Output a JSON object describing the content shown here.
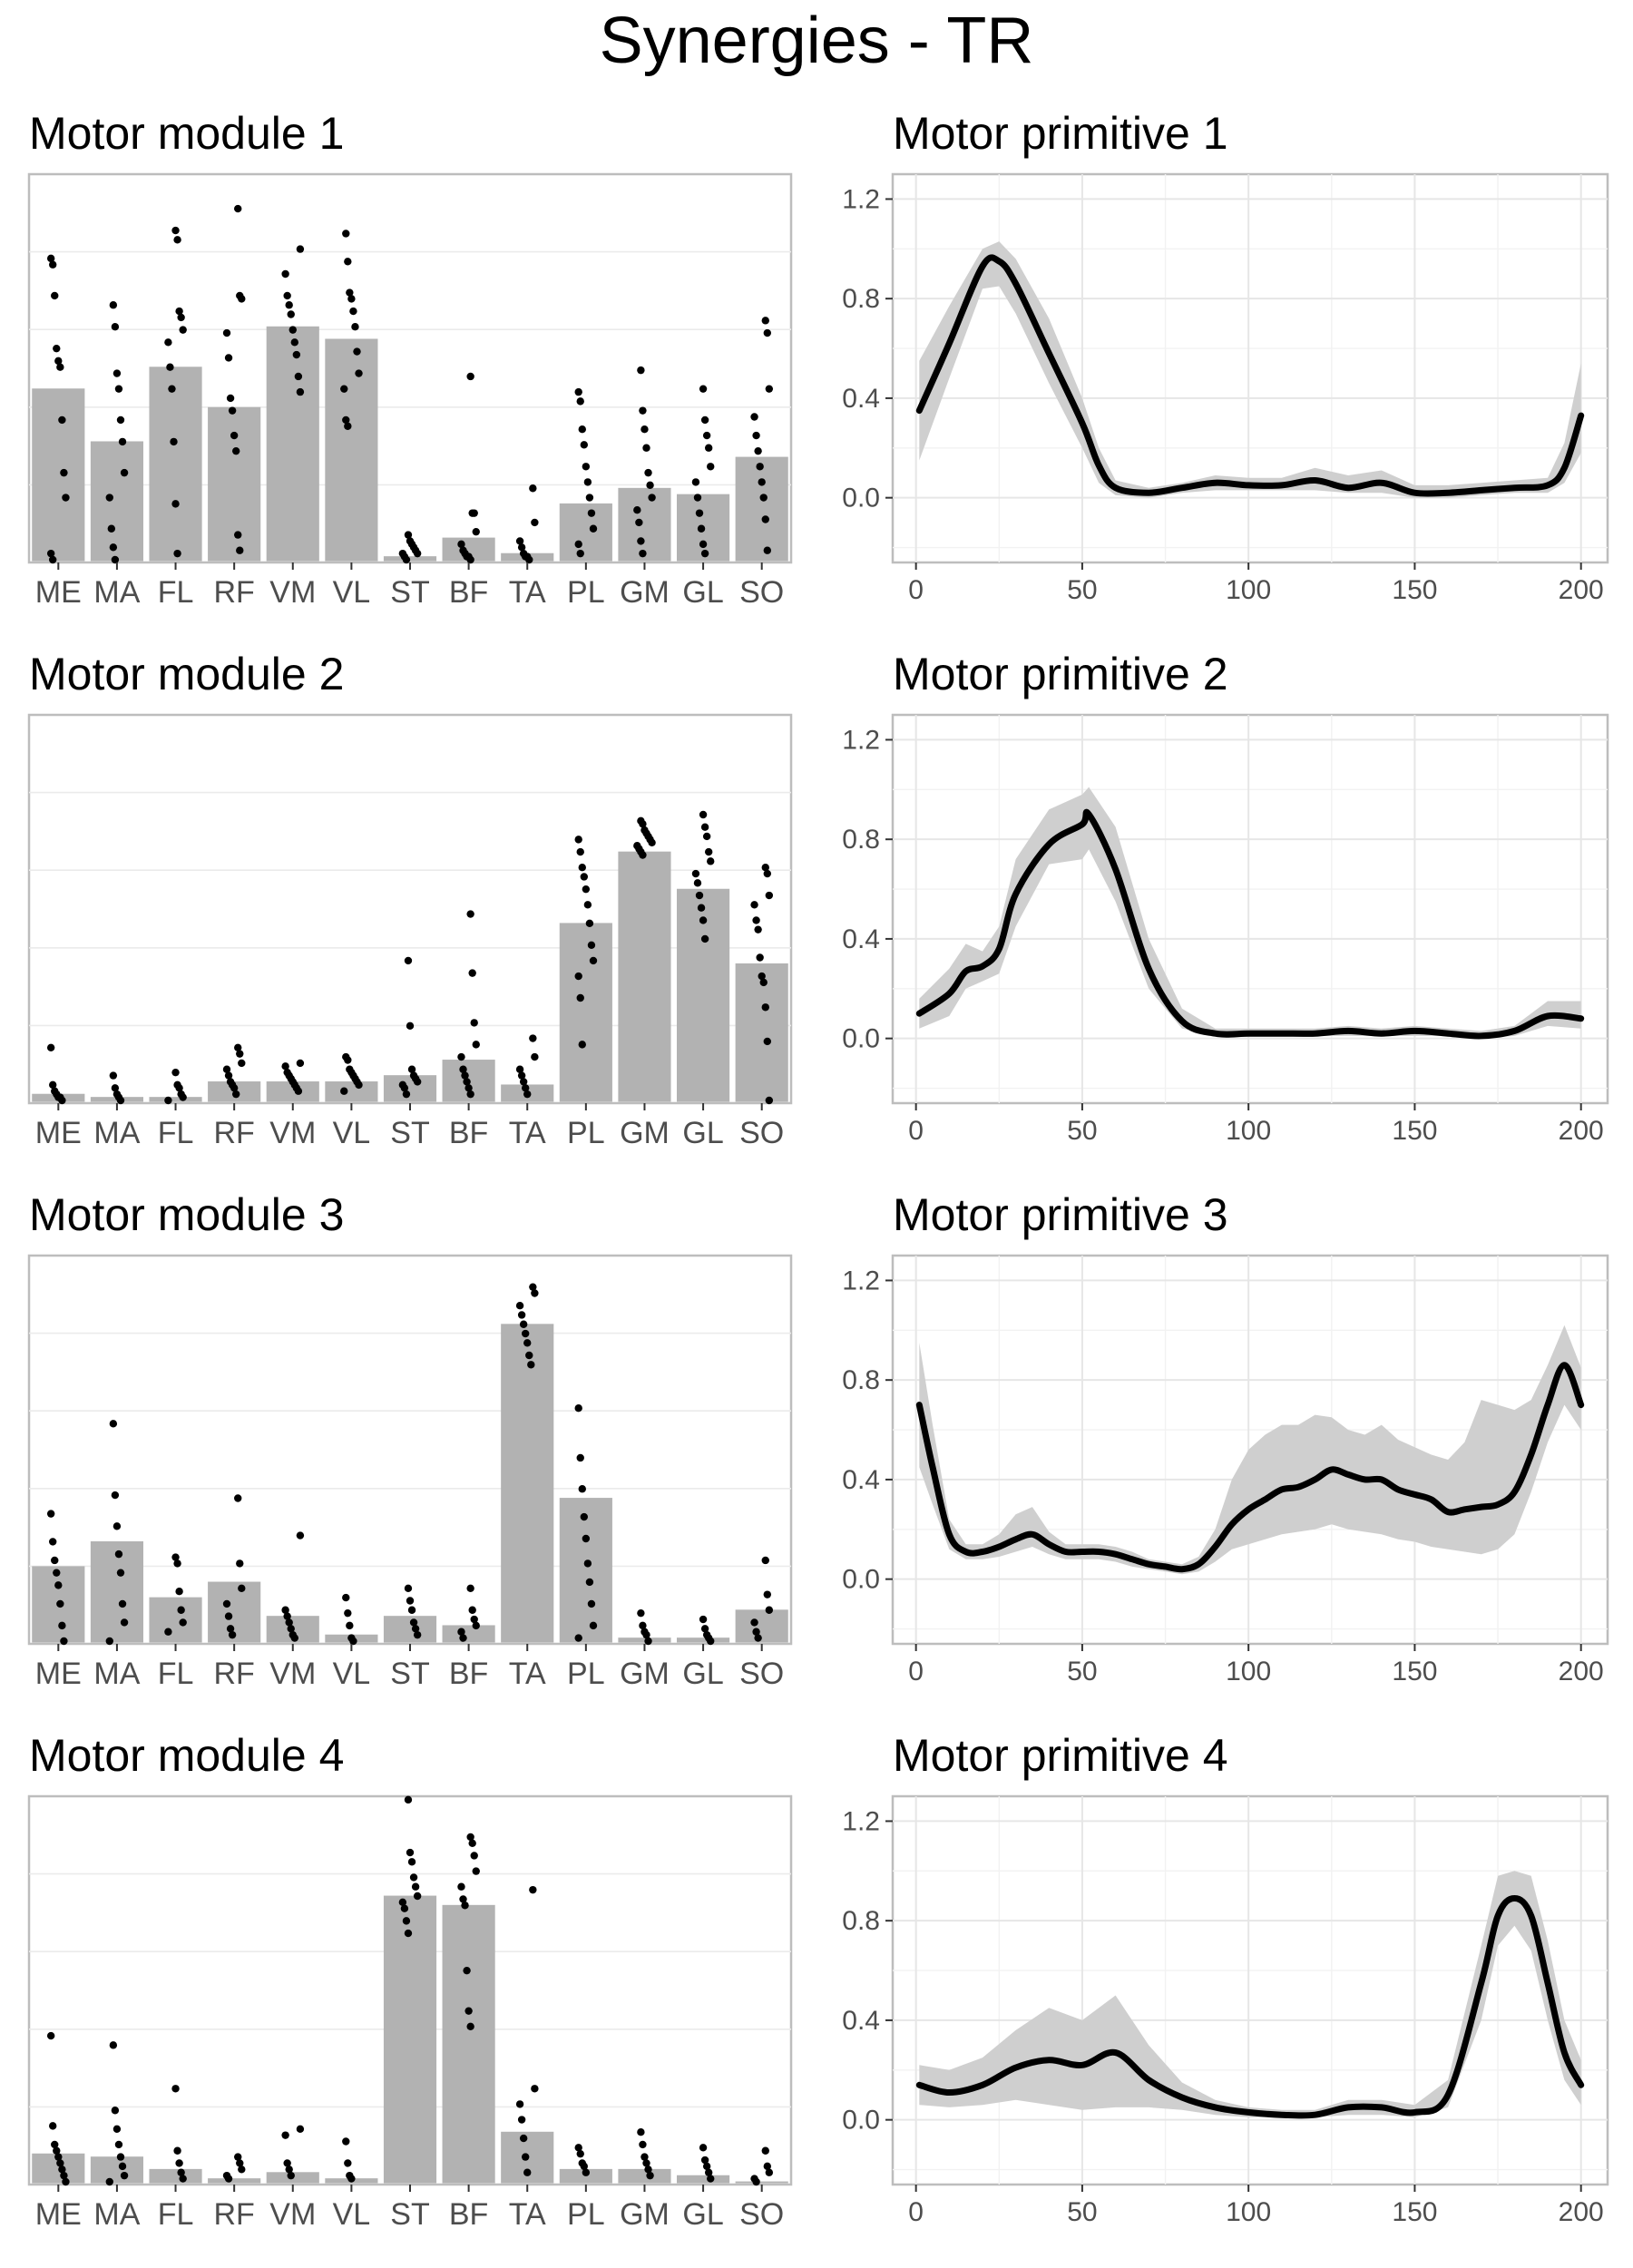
{
  "page_title": "Synergies - TR",
  "chart_data": [
    {
      "type": "bar",
      "title": "Motor module 1",
      "categories": [
        "ME",
        "MA",
        "FL",
        "RF",
        "VM",
        "VL",
        "ST",
        "BF",
        "TA",
        "PL",
        "GM",
        "GL",
        "SO"
      ],
      "values": [
        0.56,
        0.39,
        0.63,
        0.5,
        0.76,
        0.72,
        0.02,
        0.08,
        0.03,
        0.19,
        0.24,
        0.22,
        0.34
      ],
      "points": [
        [
          0.97,
          0.95,
          0.85,
          0.68,
          0.64,
          0.62,
          0.45,
          0.28,
          0.2,
          0.02,
          0.0
        ],
        [
          0.82,
          0.75,
          0.6,
          0.55,
          0.45,
          0.38,
          0.28,
          0.2,
          0.1,
          0.04,
          0.0
        ],
        [
          1.06,
          1.03,
          0.8,
          0.78,
          0.74,
          0.7,
          0.62,
          0.55,
          0.38,
          0.18,
          0.02
        ],
        [
          1.13,
          0.85,
          0.84,
          0.73,
          0.65,
          0.52,
          0.48,
          0.4,
          0.35,
          0.08,
          0.03
        ],
        [
          1.0,
          0.92,
          0.85,
          0.82,
          0.79,
          0.74,
          0.7,
          0.66,
          0.59,
          0.54
        ],
        [
          1.05,
          0.96,
          0.86,
          0.84,
          0.8,
          0.75,
          0.67,
          0.6,
          0.55,
          0.45,
          0.43
        ],
        [
          0.08,
          0.06,
          0.05,
          0.04,
          0.03,
          0.02,
          0.02,
          0.01,
          0.0
        ],
        [
          0.59,
          0.15,
          0.15,
          0.09,
          0.05,
          0.03,
          0.02,
          0.01,
          0.01,
          0.0
        ],
        [
          0.23,
          0.12,
          0.06,
          0.04,
          0.02,
          0.01,
          0.01,
          0.0
        ],
        [
          0.54,
          0.51,
          0.42,
          0.37,
          0.3,
          0.25,
          0.2,
          0.15,
          0.1,
          0.05,
          0.02
        ],
        [
          0.61,
          0.48,
          0.42,
          0.36,
          0.28,
          0.24,
          0.2,
          0.16,
          0.12,
          0.06,
          0.02
        ],
        [
          0.55,
          0.45,
          0.4,
          0.36,
          0.3,
          0.25,
          0.2,
          0.15,
          0.1,
          0.05,
          0.02
        ],
        [
          0.77,
          0.73,
          0.55,
          0.46,
          0.4,
          0.35,
          0.3,
          0.25,
          0.2,
          0.13,
          0.03
        ]
      ],
      "ylim": [
        0,
        1.25
      ],
      "grid": true
    },
    {
      "type": "line",
      "title": "Motor primitive 1",
      "x": [
        1,
        10,
        20,
        25,
        30,
        40,
        50,
        55,
        60,
        70,
        80,
        90,
        100,
        110,
        120,
        130,
        140,
        150,
        160,
        170,
        180,
        190,
        195,
        200
      ],
      "mean": [
        0.35,
        0.62,
        0.93,
        0.95,
        0.86,
        0.58,
        0.3,
        0.13,
        0.04,
        0.02,
        0.04,
        0.06,
        0.05,
        0.05,
        0.07,
        0.04,
        0.06,
        0.02,
        0.02,
        0.03,
        0.04,
        0.05,
        0.12,
        0.33
      ],
      "lower": [
        0.15,
        0.48,
        0.84,
        0.85,
        0.74,
        0.46,
        0.2,
        0.06,
        0.01,
        0.0,
        0.02,
        0.03,
        0.03,
        0.03,
        0.03,
        0.02,
        0.02,
        0.0,
        0.0,
        0.01,
        0.02,
        0.02,
        0.06,
        0.18
      ],
      "upper": [
        0.55,
        0.77,
        1.0,
        1.03,
        0.96,
        0.72,
        0.4,
        0.2,
        0.07,
        0.04,
        0.06,
        0.09,
        0.08,
        0.08,
        0.12,
        0.09,
        0.11,
        0.05,
        0.05,
        0.06,
        0.07,
        0.08,
        0.22,
        0.54
      ],
      "xticks": [
        0,
        50,
        100,
        150,
        200
      ],
      "yticks": [
        0.0,
        0.4,
        0.8,
        1.2
      ],
      "xlim": [
        -7,
        208
      ],
      "ylim": [
        -0.26,
        1.3
      ],
      "grid": true
    },
    {
      "type": "bar",
      "title": "Motor module 2",
      "categories": [
        "ME",
        "MA",
        "FL",
        "RF",
        "VM",
        "VL",
        "ST",
        "BF",
        "TA",
        "PL",
        "GM",
        "GL",
        "SO"
      ],
      "values": [
        0.03,
        0.02,
        0.02,
        0.07,
        0.07,
        0.07,
        0.09,
        0.14,
        0.06,
        0.58,
        0.81,
        0.69,
        0.45
      ],
      "points": [
        [
          0.17,
          0.05,
          0.03,
          0.02,
          0.01,
          0.01,
          0.0
        ],
        [
          0.08,
          0.04,
          0.02,
          0.01,
          0.0
        ],
        [
          0.09,
          0.05,
          0.04,
          0.02,
          0.01,
          0.0
        ],
        [
          0.17,
          0.15,
          0.12,
          0.1,
          0.08,
          0.06,
          0.05,
          0.04,
          0.02
        ],
        [
          0.12,
          0.11,
          0.09,
          0.08,
          0.07,
          0.06,
          0.05,
          0.04,
          0.03
        ],
        [
          0.14,
          0.13,
          0.1,
          0.09,
          0.08,
          0.07,
          0.06,
          0.05,
          0.03
        ],
        [
          0.45,
          0.24,
          0.1,
          0.08,
          0.07,
          0.06,
          0.05,
          0.04,
          0.02
        ],
        [
          0.6,
          0.41,
          0.25,
          0.18,
          0.14,
          0.1,
          0.08,
          0.06,
          0.04,
          0.02
        ],
        [
          0.2,
          0.14,
          0.1,
          0.08,
          0.06,
          0.04,
          0.02
        ],
        [
          0.84,
          0.8,
          0.75,
          0.72,
          0.68,
          0.63,
          0.57,
          0.5,
          0.45,
          0.4,
          0.33,
          0.18
        ],
        [
          0.9,
          0.89,
          0.87,
          0.86,
          0.85,
          0.84,
          0.83,
          0.82,
          0.81,
          0.8,
          0.79
        ],
        [
          0.92,
          0.88,
          0.85,
          0.8,
          0.77,
          0.73,
          0.7,
          0.66,
          0.62,
          0.58,
          0.52
        ],
        [
          0.75,
          0.73,
          0.66,
          0.63,
          0.58,
          0.55,
          0.46,
          0.4,
          0.38,
          0.3,
          0.19,
          0.0
        ]
      ],
      "ylim": [
        0,
        1.25
      ],
      "grid": true
    },
    {
      "type": "line",
      "title": "Motor primitive 2",
      "x": [
        1,
        10,
        15,
        20,
        25,
        30,
        40,
        50,
        52,
        60,
        70,
        80,
        90,
        100,
        110,
        120,
        130,
        140,
        150,
        160,
        170,
        180,
        190,
        200
      ],
      "mean": [
        0.1,
        0.18,
        0.27,
        0.29,
        0.36,
        0.58,
        0.78,
        0.86,
        0.9,
        0.68,
        0.28,
        0.07,
        0.02,
        0.02,
        0.02,
        0.02,
        0.03,
        0.02,
        0.03,
        0.02,
        0.01,
        0.03,
        0.09,
        0.08
      ],
      "lower": [
        0.04,
        0.09,
        0.2,
        0.23,
        0.26,
        0.45,
        0.7,
        0.72,
        0.76,
        0.55,
        0.2,
        0.04,
        0.01,
        0.01,
        0.01,
        0.01,
        0.01,
        0.01,
        0.01,
        0.01,
        0.0,
        0.01,
        0.05,
        0.04
      ],
      "upper": [
        0.16,
        0.28,
        0.38,
        0.35,
        0.45,
        0.72,
        0.92,
        0.98,
        1.01,
        0.85,
        0.4,
        0.12,
        0.04,
        0.04,
        0.04,
        0.04,
        0.05,
        0.04,
        0.05,
        0.04,
        0.03,
        0.05,
        0.15,
        0.15
      ],
      "xticks": [
        0,
        50,
        100,
        150,
        200
      ],
      "yticks": [
        0.0,
        0.4,
        0.8,
        1.2
      ],
      "xlim": [
        -7,
        208
      ],
      "ylim": [
        -0.26,
        1.3
      ],
      "grid": true
    },
    {
      "type": "bar",
      "title": "Motor module 3",
      "categories": [
        "ME",
        "MA",
        "FL",
        "RF",
        "VM",
        "VL",
        "ST",
        "BF",
        "TA",
        "PL",
        "GM",
        "GL",
        "SO"
      ],
      "values": [
        0.25,
        0.33,
        0.15,
        0.2,
        0.09,
        0.03,
        0.09,
        0.06,
        1.03,
        0.47,
        0.02,
        0.02,
        0.11
      ],
      "points": [
        [
          0.41,
          0.32,
          0.26,
          0.22,
          0.18,
          0.12,
          0.05,
          0.0
        ],
        [
          0.7,
          0.47,
          0.37,
          0.28,
          0.22,
          0.12,
          0.06,
          0.0
        ],
        [
          0.27,
          0.25,
          0.16,
          0.1,
          0.06,
          0.03
        ],
        [
          0.46,
          0.25,
          0.17,
          0.12,
          0.08,
          0.04,
          0.02
        ],
        [
          0.34,
          0.1,
          0.08,
          0.06,
          0.04,
          0.02,
          0.01
        ],
        [
          0.14,
          0.09,
          0.05,
          0.01,
          0.0
        ],
        [
          0.17,
          0.13,
          0.1,
          0.06,
          0.04,
          0.02
        ],
        [
          0.17,
          0.1,
          0.07,
          0.05,
          0.03,
          0.01
        ],
        [
          1.14,
          1.12,
          1.08,
          1.05,
          1.02,
          0.99,
          0.96,
          0.92,
          0.89
        ],
        [
          0.75,
          0.59,
          0.49,
          0.4,
          0.33,
          0.25,
          0.19,
          0.12,
          0.05,
          0.01
        ],
        [
          0.09,
          0.05,
          0.03,
          0.02,
          0.0
        ],
        [
          0.07,
          0.04,
          0.02,
          0.01,
          0.0
        ],
        [
          0.26,
          0.15,
          0.1,
          0.06,
          0.03,
          0.01
        ]
      ],
      "ylim": [
        0,
        1.25
      ],
      "grid": true
    },
    {
      "type": "line",
      "title": "Motor primitive 3",
      "x": [
        1,
        5,
        10,
        15,
        20,
        25,
        30,
        35,
        40,
        45,
        50,
        55,
        60,
        65,
        70,
        75,
        80,
        85,
        90,
        95,
        100,
        105,
        110,
        115,
        120,
        125,
        130,
        135,
        140,
        145,
        150,
        155,
        160,
        165,
        170,
        175,
        180,
        185,
        190,
        195,
        200
      ],
      "mean": [
        0.7,
        0.45,
        0.18,
        0.11,
        0.11,
        0.13,
        0.16,
        0.18,
        0.14,
        0.11,
        0.11,
        0.11,
        0.1,
        0.08,
        0.06,
        0.05,
        0.04,
        0.06,
        0.13,
        0.22,
        0.28,
        0.32,
        0.36,
        0.37,
        0.4,
        0.44,
        0.42,
        0.4,
        0.4,
        0.36,
        0.34,
        0.32,
        0.27,
        0.28,
        0.29,
        0.3,
        0.35,
        0.5,
        0.7,
        0.86,
        0.7
      ],
      "lower": [
        0.45,
        0.3,
        0.12,
        0.08,
        0.08,
        0.09,
        0.11,
        0.13,
        0.1,
        0.08,
        0.08,
        0.08,
        0.07,
        0.05,
        0.04,
        0.03,
        0.02,
        0.03,
        0.07,
        0.12,
        0.14,
        0.16,
        0.18,
        0.19,
        0.2,
        0.22,
        0.2,
        0.19,
        0.18,
        0.16,
        0.15,
        0.13,
        0.12,
        0.11,
        0.1,
        0.12,
        0.18,
        0.35,
        0.55,
        0.7,
        0.6
      ],
      "upper": [
        0.95,
        0.62,
        0.24,
        0.14,
        0.14,
        0.18,
        0.26,
        0.29,
        0.19,
        0.14,
        0.14,
        0.14,
        0.13,
        0.11,
        0.08,
        0.07,
        0.06,
        0.09,
        0.2,
        0.4,
        0.52,
        0.58,
        0.62,
        0.62,
        0.66,
        0.65,
        0.6,
        0.58,
        0.62,
        0.56,
        0.53,
        0.5,
        0.48,
        0.55,
        0.72,
        0.7,
        0.68,
        0.72,
        0.86,
        1.02,
        0.85
      ],
      "xticks": [
        0,
        50,
        100,
        150,
        200
      ],
      "yticks": [
        0.0,
        0.4,
        0.8,
        1.2
      ],
      "xlim": [
        -7,
        208
      ],
      "ylim": [
        -0.26,
        1.3
      ],
      "grid": true
    },
    {
      "type": "bar",
      "title": "Motor module 4",
      "categories": [
        "ME",
        "MA",
        "FL",
        "RF",
        "VM",
        "VL",
        "ST",
        "BF",
        "TA",
        "PL",
        "GM",
        "GL",
        "SO"
      ],
      "values": [
        0.1,
        0.09,
        0.05,
        0.02,
        0.04,
        0.02,
        0.93,
        0.9,
        0.17,
        0.05,
        0.05,
        0.03,
        0.01
      ],
      "points": [
        [
          0.47,
          0.18,
          0.12,
          0.1,
          0.08,
          0.06,
          0.04,
          0.02,
          0.0
        ],
        [
          0.44,
          0.23,
          0.17,
          0.12,
          0.08,
          0.05,
          0.02,
          0.0
        ],
        [
          0.3,
          0.1,
          0.06,
          0.03,
          0.01
        ],
        [
          0.08,
          0.06,
          0.04,
          0.02,
          0.01
        ],
        [
          0.17,
          0.15,
          0.06,
          0.04,
          0.02
        ],
        [
          0.13,
          0.06,
          0.02,
          0.01
        ],
        [
          1.23,
          1.06,
          1.03,
          0.98,
          0.95,
          0.92,
          0.9,
          0.88,
          0.84,
          0.8
        ],
        [
          1.11,
          1.09,
          1.05,
          1.0,
          0.95,
          0.91,
          0.89,
          0.68,
          0.55,
          0.5
        ],
        [
          0.94,
          0.3,
          0.25,
          0.2,
          0.14,
          0.08,
          0.03
        ],
        [
          0.11,
          0.09,
          0.06,
          0.05,
          0.03
        ],
        [
          0.16,
          0.12,
          0.08,
          0.06,
          0.04,
          0.02
        ],
        [
          0.11,
          0.07,
          0.05,
          0.03,
          0.01
        ],
        [
          0.1,
          0.05,
          0.03,
          0.01,
          0.0
        ]
      ],
      "ylim": [
        0,
        1.25
      ],
      "grid": true
    },
    {
      "type": "line",
      "title": "Motor primitive 4",
      "x": [
        1,
        10,
        20,
        30,
        40,
        50,
        60,
        70,
        80,
        90,
        100,
        110,
        120,
        130,
        140,
        150,
        160,
        170,
        175,
        180,
        185,
        190,
        195,
        200
      ],
      "mean": [
        0.14,
        0.11,
        0.14,
        0.21,
        0.24,
        0.22,
        0.27,
        0.16,
        0.09,
        0.05,
        0.03,
        0.02,
        0.02,
        0.05,
        0.05,
        0.03,
        0.1,
        0.55,
        0.82,
        0.89,
        0.82,
        0.55,
        0.27,
        0.14
      ],
      "lower": [
        0.06,
        0.05,
        0.06,
        0.08,
        0.06,
        0.04,
        0.05,
        0.05,
        0.04,
        0.02,
        0.01,
        0.01,
        0.01,
        0.02,
        0.02,
        0.01,
        0.05,
        0.4,
        0.7,
        0.78,
        0.68,
        0.4,
        0.16,
        0.06
      ],
      "upper": [
        0.22,
        0.2,
        0.25,
        0.36,
        0.45,
        0.4,
        0.5,
        0.3,
        0.15,
        0.08,
        0.05,
        0.04,
        0.04,
        0.08,
        0.08,
        0.06,
        0.16,
        0.7,
        0.98,
        1.0,
        0.98,
        0.72,
        0.4,
        0.24
      ],
      "xticks": [
        0,
        50,
        100,
        150,
        200
      ],
      "yticks": [
        0.0,
        0.4,
        0.8,
        1.2
      ],
      "xlim": [
        -7,
        208
      ],
      "ylim": [
        -0.26,
        1.3
      ],
      "grid": true
    }
  ]
}
